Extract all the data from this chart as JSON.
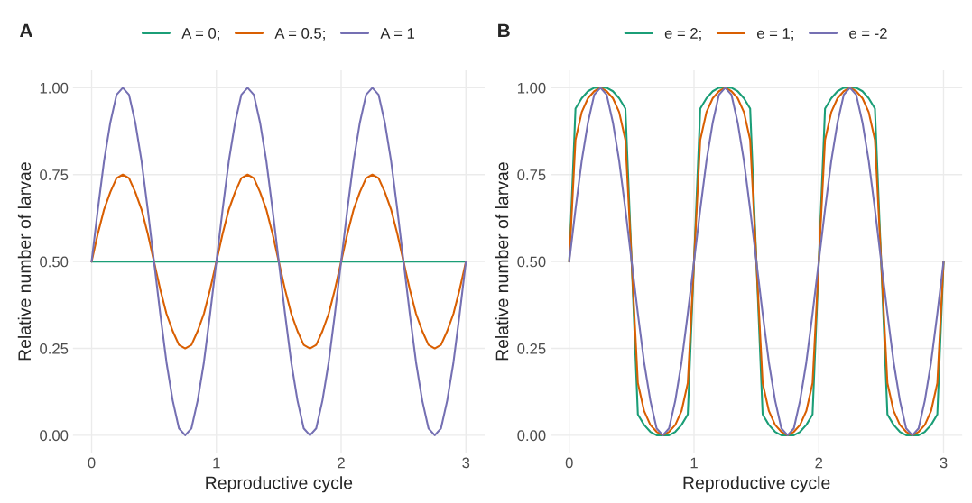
{
  "chart_data": [
    {
      "type": "line",
      "title": "A",
      "xlabel": "Reproductive cycle",
      "ylabel": "Relative number of larvae",
      "x": [
        0,
        0.05,
        0.1,
        0.15,
        0.2,
        0.25,
        0.3,
        0.35,
        0.4,
        0.45,
        0.5,
        0.55,
        0.6,
        0.65,
        0.7,
        0.75,
        0.8,
        0.85,
        0.9,
        0.95,
        1,
        1.05,
        1.1,
        1.15,
        1.2,
        1.25,
        1.3,
        1.35,
        1.4,
        1.45,
        1.5,
        1.55,
        1.6,
        1.65,
        1.7,
        1.75,
        1.8,
        1.85,
        1.9,
        1.95,
        2,
        2.05,
        2.1,
        2.15,
        2.2,
        2.25,
        2.3,
        2.35,
        2.4,
        2.45,
        2.5,
        2.55,
        2.6,
        2.65,
        2.7,
        2.75,
        2.8,
        2.85,
        2.9,
        2.95,
        3
      ],
      "series": [
        {
          "name": "A = 0;",
          "color": "#1b9e77",
          "values": [
            0.5,
            0.5,
            0.5,
            0.5,
            0.5,
            0.5,
            0.5,
            0.5,
            0.5,
            0.5,
            0.5,
            0.5,
            0.5,
            0.5,
            0.5,
            0.5,
            0.5,
            0.5,
            0.5,
            0.5,
            0.5,
            0.5,
            0.5,
            0.5,
            0.5,
            0.5,
            0.5,
            0.5,
            0.5,
            0.5,
            0.5,
            0.5,
            0.5,
            0.5,
            0.5,
            0.5,
            0.5,
            0.5,
            0.5,
            0.5,
            0.5,
            0.5,
            0.5,
            0.5,
            0.5,
            0.5,
            0.5,
            0.5,
            0.5,
            0.5,
            0.5,
            0.5,
            0.5,
            0.5,
            0.5,
            0.5,
            0.5,
            0.5,
            0.5,
            0.5,
            0.5
          ]
        },
        {
          "name": "A = 0.5;",
          "color": "#d95f02",
          "values": [
            0.5,
            0.58,
            0.65,
            0.7,
            0.74,
            0.75,
            0.74,
            0.7,
            0.65,
            0.58,
            0.5,
            0.42,
            0.35,
            0.3,
            0.26,
            0.25,
            0.26,
            0.3,
            0.35,
            0.42,
            0.5,
            0.58,
            0.65,
            0.7,
            0.74,
            0.75,
            0.74,
            0.7,
            0.65,
            0.58,
            0.5,
            0.42,
            0.35,
            0.3,
            0.26,
            0.25,
            0.26,
            0.3,
            0.35,
            0.42,
            0.5,
            0.58,
            0.65,
            0.7,
            0.74,
            0.75,
            0.74,
            0.7,
            0.65,
            0.58,
            0.5,
            0.42,
            0.35,
            0.3,
            0.26,
            0.25,
            0.26,
            0.3,
            0.35,
            0.42,
            0.5
          ]
        },
        {
          "name": "A = 1",
          "color": "#7570b3",
          "values": [
            0.5,
            0.65,
            0.79,
            0.9,
            0.98,
            1,
            0.98,
            0.9,
            0.79,
            0.65,
            0.5,
            0.35,
            0.21,
            0.1,
            0.02,
            0,
            0.02,
            0.1,
            0.21,
            0.35,
            0.5,
            0.65,
            0.79,
            0.9,
            0.98,
            1,
            0.98,
            0.9,
            0.79,
            0.65,
            0.5,
            0.35,
            0.21,
            0.1,
            0.02,
            0,
            0.02,
            0.1,
            0.21,
            0.35,
            0.5,
            0.65,
            0.79,
            0.9,
            0.98,
            1,
            0.98,
            0.9,
            0.79,
            0.65,
            0.5,
            0.35,
            0.21,
            0.1,
            0.02,
            0,
            0.02,
            0.1,
            0.21,
            0.35,
            0.5
          ]
        }
      ],
      "xlim": [
        -0.15,
        3.15
      ],
      "xticks": [
        0,
        1,
        2,
        3
      ],
      "ylim": [
        -0.05,
        1.05
      ],
      "yticks": [
        {
          "value": 0,
          "label": "0.00"
        },
        {
          "value": 0.25,
          "label": "0.25"
        },
        {
          "value": 0.5,
          "label": "0.50"
        },
        {
          "value": 0.75,
          "label": "0.75"
        },
        {
          "value": 1,
          "label": "1.00"
        }
      ],
      "grid": true,
      "legend": "top"
    },
    {
      "type": "line",
      "title": "B",
      "xlabel": "Reproductive cycle",
      "ylabel": "Relative number of larvae",
      "x": [
        0,
        0.05,
        0.1,
        0.15,
        0.2,
        0.25,
        0.3,
        0.35,
        0.4,
        0.45,
        0.5,
        0.55,
        0.6,
        0.65,
        0.7,
        0.75,
        0.8,
        0.85,
        0.9,
        0.95,
        1,
        1.05,
        1.1,
        1.15,
        1.2,
        1.25,
        1.3,
        1.35,
        1.4,
        1.45,
        1.5,
        1.55,
        1.6,
        1.65,
        1.7,
        1.75,
        1.8,
        1.85,
        1.9,
        1.95,
        2,
        2.05,
        2.1,
        2.15,
        2.2,
        2.25,
        2.3,
        2.35,
        2.4,
        2.45,
        2.5,
        2.55,
        2.6,
        2.65,
        2.7,
        2.75,
        2.8,
        2.85,
        2.9,
        2.95,
        3
      ],
      "series": [
        {
          "name": "e = 2;",
          "color": "#1b9e77",
          "values": [
            0.5,
            0.94,
            0.97,
            0.99,
            1,
            1,
            1,
            0.99,
            0.97,
            0.94,
            0.5,
            0.06,
            0.03,
            0.01,
            0,
            0,
            0,
            0.01,
            0.03,
            0.06,
            0.5,
            0.94,
            0.97,
            0.99,
            1,
            1,
            1,
            0.99,
            0.97,
            0.94,
            0.5,
            0.06,
            0.03,
            0.01,
            0,
            0,
            0,
            0.01,
            0.03,
            0.06,
            0.5,
            0.94,
            0.97,
            0.99,
            1,
            1,
            1,
            0.99,
            0.97,
            0.94,
            0.5,
            0.06,
            0.03,
            0.01,
            0,
            0,
            0,
            0.01,
            0.03,
            0.06,
            0.5
          ]
        },
        {
          "name": "e = 1;",
          "color": "#d95f02",
          "values": [
            0.5,
            0.85,
            0.93,
            0.97,
            0.99,
            1,
            0.99,
            0.97,
            0.93,
            0.85,
            0.5,
            0.15,
            0.07,
            0.03,
            0.01,
            0,
            0.01,
            0.03,
            0.07,
            0.15,
            0.5,
            0.85,
            0.93,
            0.97,
            0.99,
            1,
            0.99,
            0.97,
            0.93,
            0.85,
            0.5,
            0.15,
            0.07,
            0.03,
            0.01,
            0,
            0.01,
            0.03,
            0.07,
            0.15,
            0.5,
            0.85,
            0.93,
            0.97,
            0.99,
            1,
            0.99,
            0.97,
            0.93,
            0.85,
            0.5,
            0.15,
            0.07,
            0.03,
            0.01,
            0,
            0.01,
            0.03,
            0.07,
            0.15,
            0.5
          ]
        },
        {
          "name": "e = -2",
          "color": "#7570b3",
          "values": [
            0.5,
            0.65,
            0.79,
            0.9,
            0.98,
            1,
            0.98,
            0.9,
            0.79,
            0.65,
            0.5,
            0.35,
            0.21,
            0.1,
            0.02,
            0,
            0.02,
            0.1,
            0.21,
            0.35,
            0.5,
            0.65,
            0.79,
            0.9,
            0.98,
            1,
            0.98,
            0.9,
            0.79,
            0.65,
            0.5,
            0.35,
            0.21,
            0.1,
            0.02,
            0,
            0.02,
            0.1,
            0.21,
            0.35,
            0.5,
            0.65,
            0.79,
            0.9,
            0.98,
            1,
            0.98,
            0.9,
            0.79,
            0.65,
            0.5,
            0.35,
            0.21,
            0.1,
            0.02,
            0,
            0.02,
            0.1,
            0.21,
            0.35,
            0.5
          ]
        }
      ],
      "xlim": [
        -0.15,
        3.15
      ],
      "xticks": [
        0,
        1,
        2,
        3
      ],
      "ylim": [
        -0.05,
        1.05
      ],
      "yticks": [
        {
          "value": 0,
          "label": "0.00"
        },
        {
          "value": 0.25,
          "label": "0.25"
        },
        {
          "value": 0.5,
          "label": "0.50"
        },
        {
          "value": 0.75,
          "label": "0.75"
        },
        {
          "value": 1,
          "label": "1.00"
        }
      ],
      "grid": true,
      "legend": "top"
    }
  ]
}
